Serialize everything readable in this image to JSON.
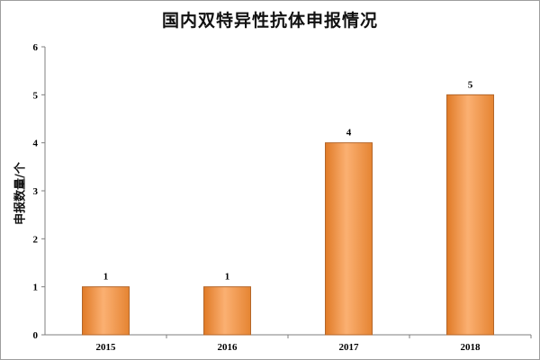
{
  "chart_data": {
    "type": "bar",
    "title": "国内双特异性抗体申报情况",
    "xlabel": "",
    "ylabel": "申报数量/个",
    "categories": [
      "2015",
      "2016",
      "2017",
      "2018"
    ],
    "values": [
      1,
      1,
      4,
      5
    ],
    "data_labels": [
      "1",
      "1",
      "4",
      "5"
    ],
    "ylim": [
      0,
      6
    ],
    "yticks": [
      "0",
      "1",
      "2",
      "3",
      "4",
      "5",
      "6"
    ],
    "grid": false,
    "legend": "none",
    "bar_color": "#F79646",
    "bar_edge_color": "#B3662A"
  }
}
